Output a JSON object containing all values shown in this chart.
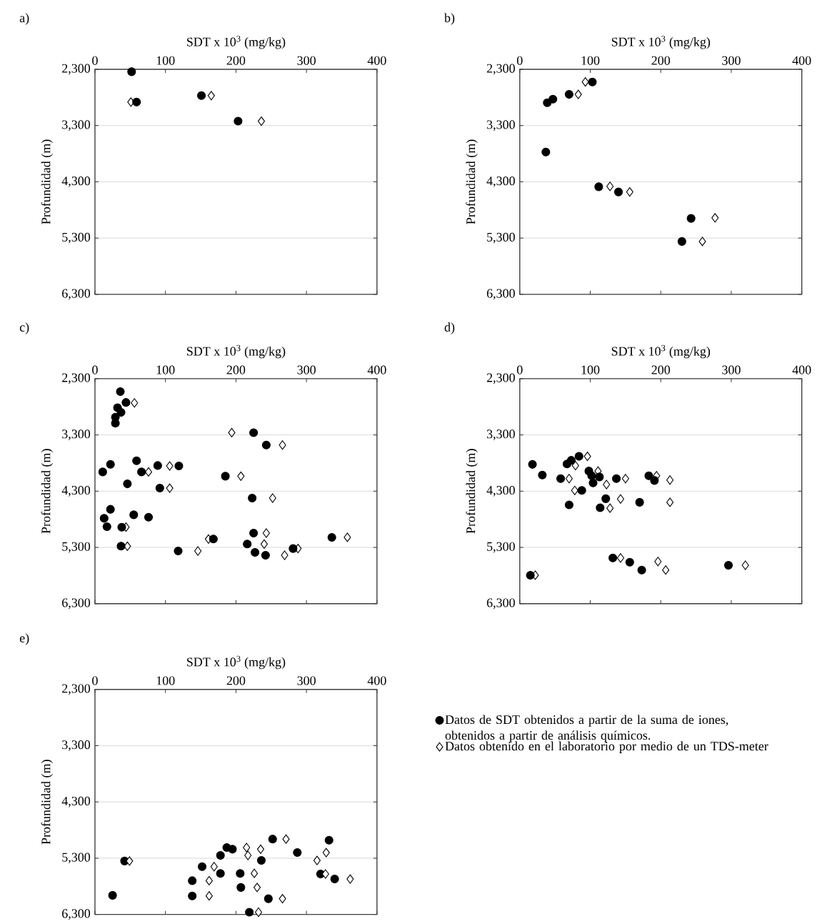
{
  "chart_data": [
    {
      "type": "scatter",
      "title": "a)",
      "xlabel": "SDT x 10$^{3}$ (mg/kg)",
      "ylabel": "Profundidad (m)",
      "xlim": [
        0,
        400
      ],
      "ylim": [
        6300,
        2300
      ],
      "xticks": [
        0,
        100,
        200,
        300,
        400
      ],
      "yticks": [
        {
          "value": 2300,
          "label": "2,300"
        },
        {
          "value": 3300,
          "label": "3,300"
        },
        {
          "value": 4300,
          "label": "4,300"
        },
        {
          "value": 5300,
          "label": "5,300"
        },
        {
          "value": 6300,
          "label": "6,300"
        }
      ],
      "grid": "y",
      "series": [
        {
          "color": "#000000",
          "marker": "diamond",
          "x": [
            51,
            165,
            236
          ],
          "values": [
            2882,
            2768,
            3222
          ]
        },
        {
          "color": "#000000",
          "marker": "circle",
          "x": [
            52,
            59,
            151,
            203
          ],
          "values": [
            2343,
            2882,
            2768,
            3222
          ]
        }
      ]
    },
    {
      "type": "scatter",
      "title": "b)",
      "xlabel": "SDT x 10$^{3}$ (mg/kg)",
      "ylabel": "Profundidad (m)",
      "xlim": [
        0,
        400
      ],
      "ylim": [
        6300,
        2300
      ],
      "xticks": [
        0,
        100,
        200,
        300,
        400
      ],
      "yticks": [
        {
          "value": 2300,
          "label": "2,300"
        },
        {
          "value": 3300,
          "label": "3,300"
        },
        {
          "value": 4300,
          "label": "4,300"
        },
        {
          "value": 5300,
          "label": "5,300"
        },
        {
          "value": 6300,
          "label": "6,300"
        }
      ],
      "grid": "y",
      "series": [
        {
          "color": "#000000",
          "marker": "diamond",
          "x": [
            93,
            83,
            128,
            156,
            277,
            259
          ],
          "values": [
            2525,
            2746,
            4380,
            4480,
            4940,
            5360
          ]
        },
        {
          "color": "#000000",
          "marker": "circle",
          "x": [
            103,
            70,
            47,
            39,
            37,
            112,
            140,
            243,
            230
          ],
          "values": [
            2525,
            2746,
            2831,
            2895,
            3770,
            4388,
            4480,
            4950,
            5360
          ]
        }
      ]
    },
    {
      "type": "scatter",
      "title": "c)",
      "xlabel": "SDT x 10$^{3}$ (mg/kg)",
      "ylabel": "Profundidad (m)",
      "xlim": [
        0,
        400
      ],
      "ylim": [
        6300,
        2300
      ],
      "xticks": [
        0,
        100,
        200,
        300,
        400
      ],
      "yticks": [
        {
          "value": 2300,
          "label": "2,300"
        },
        {
          "value": 3300,
          "label": "3,300"
        },
        {
          "value": 4300,
          "label": "4,300"
        },
        {
          "value": 5300,
          "label": "5,300"
        },
        {
          "value": 6300,
          "label": "6,300"
        }
      ],
      "grid": "y",
      "series": [
        {
          "color": "#000000",
          "marker": "diamond",
          "x": [
            56,
            194,
            266,
            106,
            76,
            106,
            207,
            252,
            44,
            46,
            146,
            161,
            243,
            240,
            269,
            288,
            358
          ],
          "values": [
            2731,
            3260,
            3480,
            3852,
            3958,
            4246,
            4034,
            4423,
            4940,
            5278,
            5363,
            5151,
            5045,
            5240,
            5439,
            5320,
            5121
          ]
        },
        {
          "color": "#000000",
          "marker": "circle",
          "x": [
            36,
            44,
            32,
            37,
            29,
            29,
            225,
            243,
            22,
            11,
            59,
            66,
            89,
            119,
            46,
            185,
            92,
            223,
            22,
            13,
            17,
            55,
            76,
            38,
            37,
            118,
            168,
            225,
            216,
            227,
            242,
            281,
            336
          ],
          "values": [
            2530,
            2723,
            2816,
            2900,
            2985,
            3091,
            3260,
            3480,
            3823,
            3958,
            3760,
            3958,
            3844,
            3852,
            4170,
            4034,
            4246,
            4423,
            4622,
            4783,
            4931,
            4720,
            4762,
            4940,
            5278,
            5363,
            5151,
            5045,
            5240,
            5388,
            5439,
            5320,
            5121
          ]
        }
      ]
    },
    {
      "type": "scatter",
      "title": "d)",
      "xlabel": "SDT x 10$^{3}$ (mg/kg)",
      "ylabel": "Profundidad (m)",
      "xlim": [
        0,
        400
      ],
      "ylim": [
        6300,
        2300
      ],
      "xticks": [
        0,
        100,
        200,
        300,
        400
      ],
      "yticks": [
        {
          "value": 2300,
          "label": "2,300"
        },
        {
          "value": 3300,
          "label": "3,300"
        },
        {
          "value": 4300,
          "label": "4,300"
        },
        {
          "value": 5300,
          "label": "5,300"
        },
        {
          "value": 6300,
          "label": "6,300"
        }
      ],
      "grid": "y",
      "series": [
        {
          "color": "#000000",
          "marker": "diamond",
          "x": [
            96,
            79,
            70,
            111,
            123,
            78,
            150,
            194,
            213,
            143,
            128,
            213,
            143,
            196,
            207,
            320,
            22
          ],
          "values": [
            3681,
            3845,
            4077,
            3942,
            4182,
            4287,
            4077,
            4026,
            4102,
            4439,
            4603,
            4498,
            5487,
            5550,
            5702,
            5617,
            5794
          ]
        },
        {
          "color": "#000000",
          "marker": "circle",
          "x": [
            18,
            32,
            58,
            67,
            73,
            84,
            98,
            102,
            113,
            104,
            88,
            137,
            183,
            191,
            122,
            114,
            70,
            170,
            132,
            156,
            173,
            296,
            15
          ],
          "values": [
            3824,
            4013,
            4077,
            3816,
            3752,
            3681,
            3942,
            4026,
            4047,
            4152,
            4287,
            4077,
            4026,
            4110,
            4434,
            4594,
            4544,
            4498,
            5487,
            5563,
            5702,
            5617,
            5794
          ]
        }
      ]
    },
    {
      "type": "scatter",
      "title": "e)",
      "xlabel": "SDT x 10$^{3}$ (mg/kg)",
      "ylabel": "Profundidad (m)",
      "xlim": [
        0,
        400
      ],
      "ylim": [
        6300,
        2300
      ],
      "xticks": [
        0,
        100,
        200,
        300,
        400
      ],
      "yticks": [
        {
          "value": 2300,
          "label": "2,300"
        },
        {
          "value": 3300,
          "label": "3,300"
        },
        {
          "value": 4300,
          "label": "4,300"
        },
        {
          "value": 5300,
          "label": "5,300"
        },
        {
          "value": 6300,
          "label": "6,300"
        }
      ],
      "grid": "y",
      "legend": "right",
      "series": [
        {
          "name": "Datos de SDT obtenidos a partir de la suma de iones, obtenidos a partir de análisis químicos.",
          "color": "#000000",
          "marker": "circle",
          "x": [
            42,
            25,
            138,
            138,
            152,
            178,
            178,
            187,
            195,
            206,
            207,
            219,
            236,
            246,
            252,
            287,
            332,
            320,
            340
          ],
          "values": [
            5350,
            5960,
            5700,
            5970,
            5450,
            5570,
            5250,
            5110,
            5140,
            5570,
            5820,
            6260,
            5340,
            6020,
            4960,
            5200,
            4980,
            5580,
            5670
          ]
        },
        {
          "name": "Datos obtenido en el laboratorio por medio de un TDS-meter",
          "color": "#000000",
          "marker": "diamond",
          "x": [
            49,
            162,
            162,
            169,
            215,
            217,
            235,
            226,
            230,
            232,
            266,
            271,
            315,
            328,
            327,
            362
          ],
          "values": [
            5350,
            5700,
            5970,
            5450,
            5110,
            5250,
            5140,
            5570,
            5820,
            6260,
            6020,
            4960,
            5340,
            5200,
            5580,
            5670
          ]
        }
      ]
    }
  ]
}
